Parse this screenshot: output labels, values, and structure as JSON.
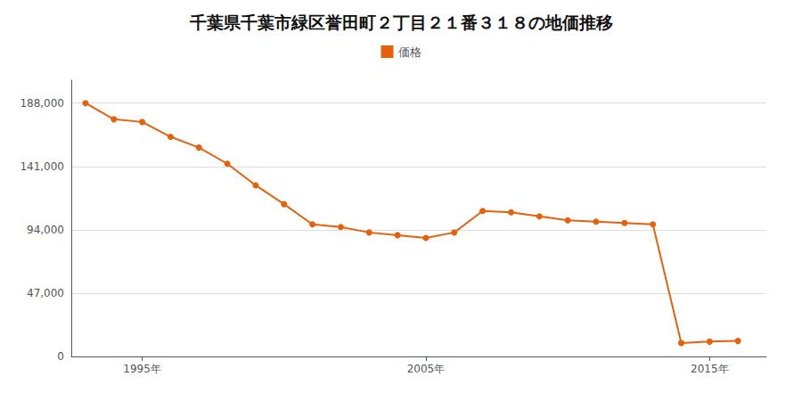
{
  "chart_data": {
    "type": "line",
    "title": "千葉県千葉市緑区誉田町２丁目２１番３１８の地価推移",
    "x": [
      1993,
      1994,
      1995,
      1996,
      1997,
      1998,
      1999,
      2000,
      2001,
      2002,
      2003,
      2004,
      2005,
      2006,
      2007,
      2008,
      2009,
      2010,
      2011,
      2012,
      2013,
      2014,
      2015,
      2016
    ],
    "series": [
      {
        "name": "価格",
        "color": "#e8610a",
        "marker": "circle",
        "values": [
          188000,
          176000,
          174000,
          163000,
          155000,
          143000,
          127000,
          113000,
          98000,
          96000,
          92000,
          90000,
          88000,
          92000,
          108000,
          107000,
          104000,
          101000,
          100000,
          99000,
          98000,
          10000,
          11000,
          11500
        ]
      }
    ],
    "xlim": [
      1992.5,
      2017
    ],
    "xticks": [
      {
        "value": 1995,
        "label": "1995年"
      },
      {
        "value": 2005,
        "label": "2005年"
      },
      {
        "value": 2015,
        "label": "2015年"
      }
    ],
    "ylim": [
      0,
      205000
    ],
    "yticks": [
      0,
      {
        "value": 47000,
        "label": "47,000"
      },
      {
        "value": 94000,
        "label": "94,000"
      },
      {
        "value": 141000,
        "label": "141,000"
      },
      {
        "value": 188000,
        "label": "188,000"
      }
    ],
    "grid": "y",
    "legend": "top"
  }
}
